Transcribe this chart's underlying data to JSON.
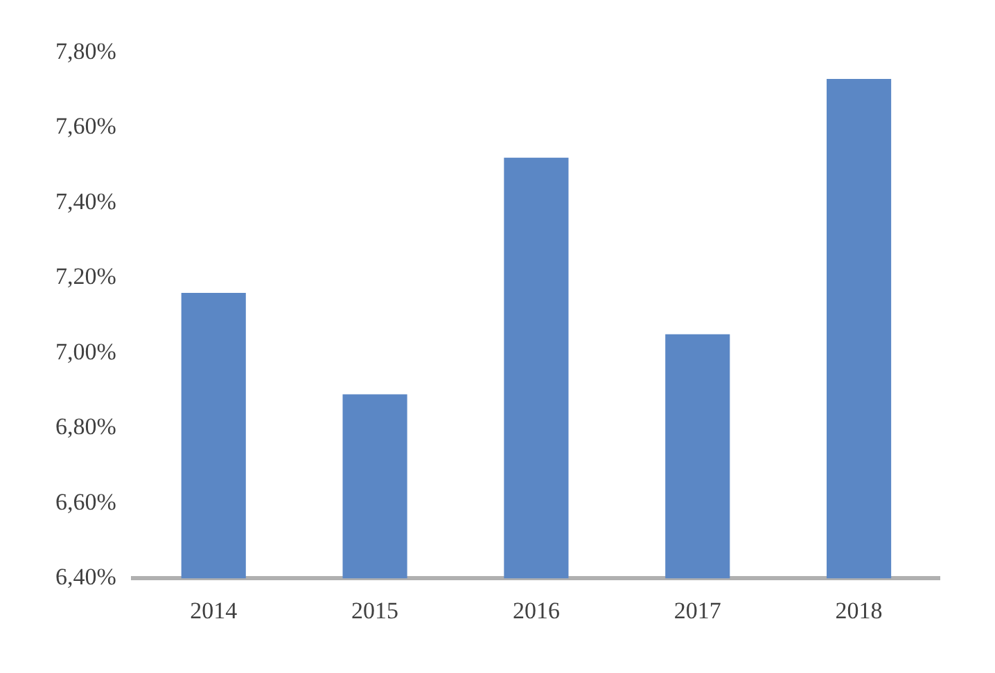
{
  "chart_data": {
    "type": "bar",
    "categories": [
      "2014",
      "2015",
      "2016",
      "2017",
      "2018"
    ],
    "values": [
      7.16,
      6.89,
      7.52,
      7.05,
      7.73
    ],
    "color": "#5b87c5",
    "ylim": [
      6.4,
      7.8
    ],
    "yticks": [
      {
        "value": 6.4,
        "label": "6,40%"
      },
      {
        "value": 6.6,
        "label": "6,60%"
      },
      {
        "value": 6.8,
        "label": "6,80%"
      },
      {
        "value": 7.0,
        "label": "7,00%"
      },
      {
        "value": 7.2,
        "label": "7,20%"
      },
      {
        "value": 7.4,
        "label": "7,40%"
      },
      {
        "value": 7.6,
        "label": "7,60%"
      },
      {
        "value": 7.8,
        "label": "7,80%"
      }
    ],
    "grid": false,
    "legend": false
  }
}
